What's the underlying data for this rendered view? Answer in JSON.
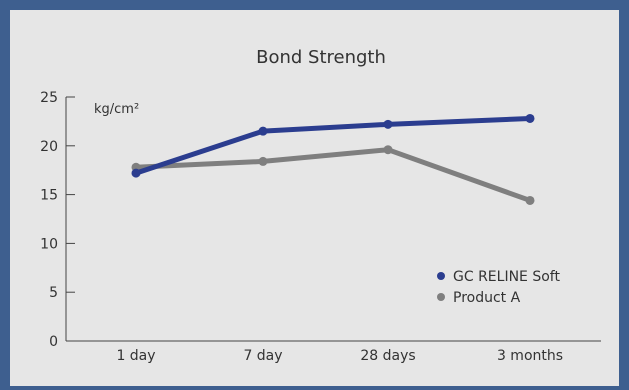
{
  "chart_data": {
    "type": "line",
    "title": "Bond Strength",
    "ylabel": "kg/cm²",
    "xlabel": "",
    "categories": [
      "1 day",
      "7 day",
      "28 days",
      "3 months"
    ],
    "ylim": [
      0,
      25
    ],
    "yticks": [
      0,
      5,
      10,
      15,
      20,
      25
    ],
    "grid": false,
    "legend_position": "bottom-right",
    "series": [
      {
        "name": "GC RELINE Soft",
        "color": "#2b3d8f",
        "values": [
          17.2,
          21.5,
          22.2,
          22.8
        ]
      },
      {
        "name": "Product A",
        "color": "#7f7f7f",
        "values": [
          17.8,
          18.4,
          19.6,
          14.4
        ]
      }
    ]
  },
  "colors": {
    "background": "#3e5f8f",
    "panel": "#e6e6e6",
    "axis": "#444444"
  }
}
